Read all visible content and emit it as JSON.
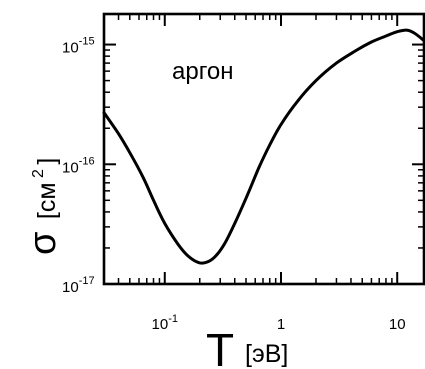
{
  "chart_data": {
    "type": "line",
    "title": "",
    "annotation": "аргон",
    "xscale": "log",
    "yscale": "log",
    "xlim": [
      0.03,
      17
    ],
    "ylim": [
      1e-17,
      1.8e-15
    ],
    "xlabel": {
      "symbol": "T",
      "unit": "[эВ]"
    },
    "ylabel": {
      "symbol": "σ",
      "unit_prefix": "[см",
      "unit_power": "2",
      "unit_suffix": "]"
    },
    "x_ticks": [
      {
        "value": 0.1,
        "base": "10",
        "exp": "-1"
      },
      {
        "value": 1,
        "base": "1",
        "exp": ""
      },
      {
        "value": 10,
        "base": "10",
        "exp": ""
      }
    ],
    "y_ticks": [
      {
        "value": 1e-17,
        "base": "10",
        "exp": "-17"
      },
      {
        "value": 1e-16,
        "base": "10",
        "exp": "-16"
      },
      {
        "value": 1e-15,
        "base": "10",
        "exp": "-15"
      }
    ],
    "grid": false,
    "legend": "none",
    "series": [
      {
        "x": [
          0.03,
          0.04,
          0.05,
          0.065,
          0.08,
          0.1,
          0.13,
          0.16,
          0.2,
          0.24,
          0.28,
          0.33,
          0.4,
          0.5,
          0.65,
          0.8,
          1.0,
          1.4,
          2.0,
          3.0,
          4.5,
          6.0,
          8.0,
          10.0,
          12.0,
          14.0,
          17.0
        ],
        "y": [
          2.7e-16,
          1.8e-16,
          1.25e-16,
          7.8e-17,
          5e-17,
          3.2e-17,
          2.15e-17,
          1.7e-17,
          1.5e-17,
          1.55e-17,
          1.75e-17,
          2.2e-17,
          3.2e-17,
          5.2e-17,
          9.5e-17,
          1.45e-16,
          2.15e-16,
          3.4e-16,
          5e-16,
          7e-16,
          9e-16,
          1.05e-15,
          1.18e-15,
          1.28e-15,
          1.32e-15,
          1.25e-15,
          1.08e-15
        ]
      }
    ]
  }
}
